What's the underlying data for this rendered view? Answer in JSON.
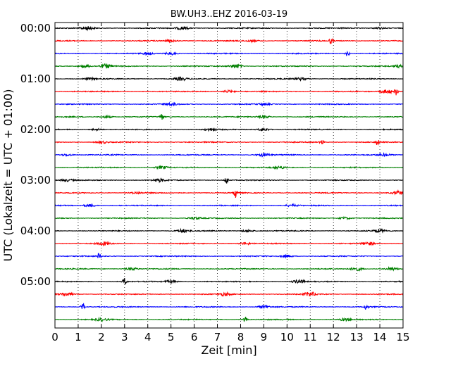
{
  "chart_data": {
    "type": "line",
    "title": "BW.UH3..EHZ 2016-03-19",
    "xlabel": "Zeit  [min]",
    "ylabel": "UTC (Lokalzeit = UTC + 01:00)",
    "xlim": [
      0,
      15
    ],
    "x_ticks": [
      "0",
      "1",
      "2",
      "3",
      "4",
      "5",
      "6",
      "7",
      "8",
      "9",
      "10",
      "11",
      "12",
      "13",
      "14",
      "15"
    ],
    "y_tick_labels": [
      "00:00",
      "01:00",
      "02:00",
      "03:00",
      "04:00",
      "05:00"
    ],
    "grid": "vertical dotted lines at each minute",
    "trace_colors": [
      "#000000",
      "#ff0000",
      "#0000ff",
      "#008000"
    ],
    "trace_count": 24,
    "trace_interval_minutes": 15,
    "traces": [
      {
        "start": "00:00",
        "color": "#000000",
        "events": [
          [
            1.4,
            0.55
          ],
          [
            5.5,
            0.5
          ],
          [
            14.0,
            0.3
          ]
        ]
      },
      {
        "start": "00:15",
        "color": "#ff0000",
        "events": [
          [
            11.9,
            0.9
          ],
          [
            5.0,
            0.35
          ],
          [
            8.5,
            0.3
          ]
        ]
      },
      {
        "start": "00:30",
        "color": "#0000ff",
        "events": [
          [
            12.6,
            1.0
          ],
          [
            5.0,
            0.45
          ],
          [
            4.0,
            0.3
          ]
        ]
      },
      {
        "start": "00:45",
        "color": "#008000",
        "events": [
          [
            2.2,
            0.7
          ],
          [
            7.8,
            0.7
          ],
          [
            1.3,
            0.5
          ],
          [
            14.8,
            0.4
          ]
        ]
      },
      {
        "start": "01:00",
        "color": "#000000",
        "events": [
          [
            5.4,
            0.55
          ],
          [
            10.6,
            0.45
          ],
          [
            1.5,
            0.3
          ]
        ]
      },
      {
        "start": "01:15",
        "color": "#ff0000",
        "events": [
          [
            14.7,
            1.2
          ],
          [
            14.3,
            0.7
          ],
          [
            7.5,
            0.4
          ]
        ]
      },
      {
        "start": "01:30",
        "color": "#0000ff",
        "events": [
          [
            5.0,
            0.4
          ],
          [
            9.0,
            0.3
          ]
        ]
      },
      {
        "start": "01:45",
        "color": "#008000",
        "events": [
          [
            4.6,
            1.0
          ],
          [
            9.0,
            0.45
          ],
          [
            2.2,
            0.35
          ]
        ]
      },
      {
        "start": "02:00",
        "color": "#000000",
        "events": [
          [
            9.0,
            0.5
          ],
          [
            6.7,
            0.4
          ],
          [
            1.8,
            0.3
          ]
        ]
      },
      {
        "start": "02:15",
        "color": "#ff0000",
        "events": [
          [
            13.9,
            0.9
          ],
          [
            11.5,
            0.9
          ],
          [
            2.0,
            0.4
          ]
        ]
      },
      {
        "start": "02:30",
        "color": "#0000ff",
        "events": [
          [
            9.0,
            0.5
          ],
          [
            14.2,
            0.4
          ],
          [
            0.5,
            0.35
          ]
        ]
      },
      {
        "start": "02:45",
        "color": "#008000",
        "events": [
          [
            4.6,
            0.45
          ],
          [
            9.7,
            0.4
          ]
        ]
      },
      {
        "start": "03:00",
        "color": "#000000",
        "events": [
          [
            7.4,
            1.2
          ],
          [
            4.5,
            0.5
          ],
          [
            0.5,
            0.35
          ]
        ]
      },
      {
        "start": "03:15",
        "color": "#ff0000",
        "events": [
          [
            7.8,
            1.6
          ],
          [
            14.8,
            0.6
          ],
          [
            3.5,
            0.3
          ]
        ]
      },
      {
        "start": "03:30",
        "color": "#0000ff",
        "events": [
          [
            1.5,
            0.45
          ],
          [
            10.2,
            0.35
          ]
        ]
      },
      {
        "start": "03:45",
        "color": "#008000",
        "events": [
          [
            6.0,
            0.35
          ],
          [
            12.5,
            0.35
          ]
        ]
      },
      {
        "start": "04:00",
        "color": "#000000",
        "events": [
          [
            5.5,
            0.55
          ],
          [
            14.0,
            0.5
          ],
          [
            8.3,
            0.4
          ]
        ]
      },
      {
        "start": "04:15",
        "color": "#ff0000",
        "events": [
          [
            2.1,
            0.55
          ],
          [
            13.5,
            0.5
          ],
          [
            8.2,
            0.4
          ]
        ]
      },
      {
        "start": "04:30",
        "color": "#0000ff",
        "events": [
          [
            1.9,
            1.0
          ],
          [
            10.0,
            0.4
          ]
        ]
      },
      {
        "start": "04:45",
        "color": "#008000",
        "events": [
          [
            13.0,
            0.55
          ],
          [
            14.5,
            0.5
          ],
          [
            3.3,
            0.45
          ]
        ]
      },
      {
        "start": "05:00",
        "color": "#000000",
        "events": [
          [
            3.0,
            1.2
          ],
          [
            10.5,
            0.55
          ],
          [
            5.0,
            0.4
          ]
        ]
      },
      {
        "start": "05:15",
        "color": "#ff0000",
        "events": [
          [
            11.0,
            0.7
          ],
          [
            0.5,
            0.6
          ],
          [
            7.3,
            0.5
          ]
        ]
      },
      {
        "start": "05:30",
        "color": "#0000ff",
        "events": [
          [
            1.2,
            1.2
          ],
          [
            13.4,
            0.9
          ],
          [
            9.0,
            0.5
          ]
        ]
      },
      {
        "start": "05:45",
        "color": "#008000",
        "events": [
          [
            8.2,
            0.9
          ],
          [
            2.0,
            0.45
          ],
          [
            12.5,
            0.4
          ]
        ]
      }
    ]
  }
}
